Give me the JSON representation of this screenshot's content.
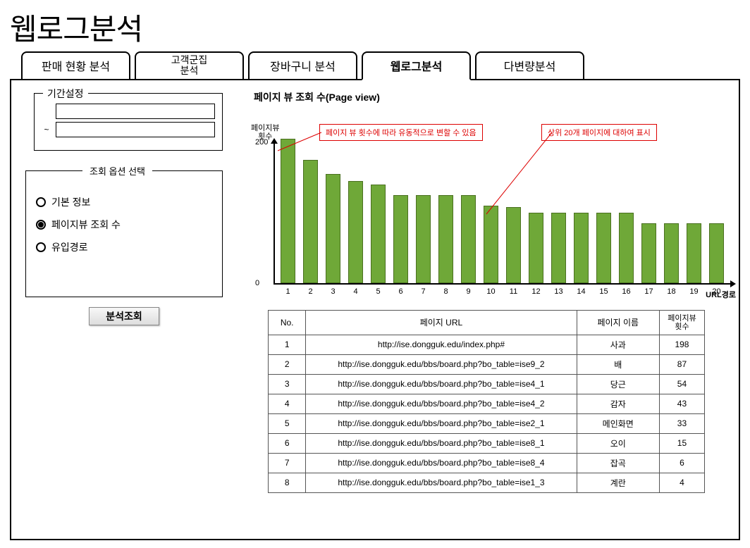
{
  "page_title": "웹로그분석",
  "tabs": [
    {
      "label": "판매 현황 분석",
      "active": false
    },
    {
      "label": "고객군집\n분석",
      "active": false,
      "wrap": true
    },
    {
      "label": "장바구니 분석",
      "active": false
    },
    {
      "label": "웹로그분석",
      "active": true
    },
    {
      "label": "다변량분석",
      "active": false
    }
  ],
  "period": {
    "legend": "기간설정",
    "tilde": "~"
  },
  "options": {
    "legend": "조회 옵션 선택",
    "items": [
      {
        "label": "기본 정보",
        "selected": false
      },
      {
        "label": "페이지뷰 조회 수",
        "selected": true
      },
      {
        "label": "유입경로",
        "selected": false
      }
    ]
  },
  "query_button": "분석조회",
  "chart": {
    "title": "페이지 뷰 조회 수(Page view)",
    "y_label": "페이지뷰\n횟수",
    "x_label": "URL경로",
    "y_max": 200,
    "y_ticks": [
      {
        "v": 200,
        "label": "200"
      },
      {
        "v": 0,
        "label": "0"
      }
    ],
    "bar_color": "#6fa838",
    "bar_border": "#4a7020",
    "values": [
      205,
      175,
      155,
      145,
      140,
      125,
      125,
      125,
      125,
      110,
      108,
      100,
      100,
      100,
      100,
      100,
      85,
      85,
      85,
      85
    ],
    "x_ticks": [
      "1",
      "2",
      "3",
      "4",
      "5",
      "6",
      "7",
      "8",
      "9",
      "10",
      "11",
      "12",
      "13",
      "14",
      "15",
      "16",
      "17",
      "18",
      "19",
      "20"
    ],
    "annot1": "페이지 뷰 횟수에 따라 유동적으로 변할 수 있음",
    "annot2": "상위 20개 페이지에 대하여 표시",
    "annot_border": "#d00000",
    "annot_text_color": "#d00000"
  },
  "table": {
    "headers": {
      "no": "No.",
      "url": "페이지 URL",
      "name": "페이지 이름",
      "count": "페이지뷰\n횟수"
    },
    "rows": [
      {
        "no": "1",
        "url": "http://ise.dongguk.edu/index.php#",
        "name": "사과",
        "count": "198"
      },
      {
        "no": "2",
        "url": "http://ise.dongguk.edu/bbs/board.php?bo_table=ise9_2",
        "name": "배",
        "count": "87"
      },
      {
        "no": "3",
        "url": "http://ise.dongguk.edu/bbs/board.php?bo_table=ise4_1",
        "name": "당근",
        "count": "54"
      },
      {
        "no": "4",
        "url": "http://ise.dongguk.edu/bbs/board.php?bo_table=ise4_2",
        "name": "감자",
        "count": "43"
      },
      {
        "no": "5",
        "url": "http://ise.dongguk.edu/bbs/board.php?bo_table=ise2_1",
        "name": "메인화면",
        "count": "33"
      },
      {
        "no": "6",
        "url": "http://ise.dongguk.edu/bbs/board.php?bo_table=ise8_1",
        "name": "오이",
        "count": "15"
      },
      {
        "no": "7",
        "url": "http://ise.dongguk.edu/bbs/board.php?bo_table=ise8_4",
        "name": "잡곡",
        "count": "6"
      },
      {
        "no": "8",
        "url": "http://ise.dongguk.edu/bbs/board.php?bo_table=ise1_3",
        "name": "계란",
        "count": "4"
      }
    ]
  }
}
